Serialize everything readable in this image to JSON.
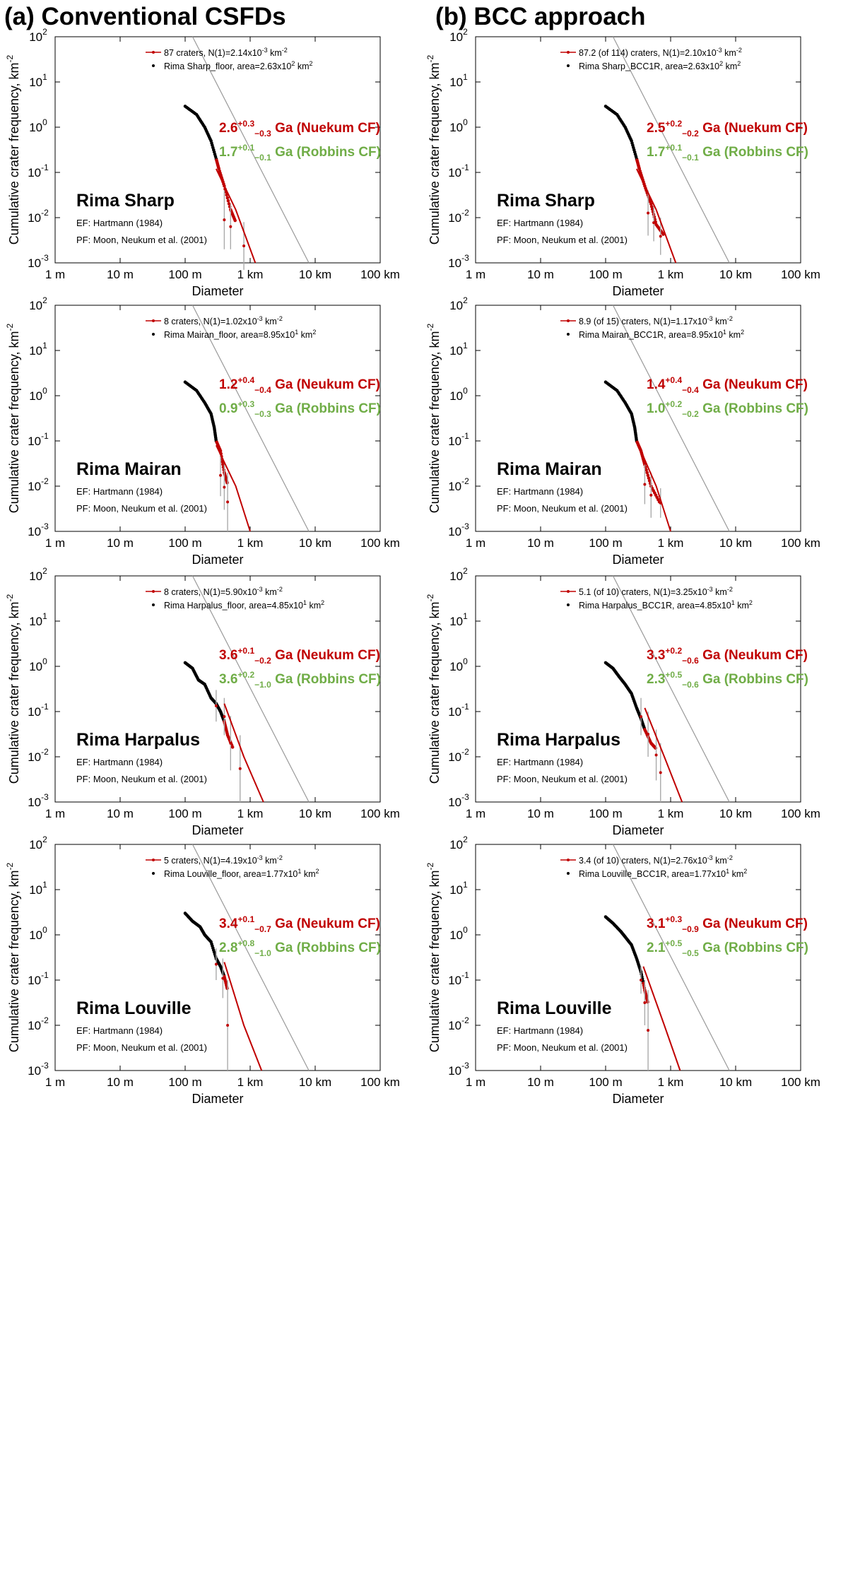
{
  "columns": {
    "a_title": "(a) Conventional CSFDs",
    "b_title": "(b) BCC approach"
  },
  "axes": {
    "ylabel_main": "Cumulative crater frequency, km",
    "ylabel_sup": "-2",
    "xlabel": "Diameter",
    "x_ticks": [
      "1 m",
      "10 m",
      "100 m",
      "1 km",
      "10 km",
      "100 km"
    ],
    "x_tick_values_km": [
      0.001,
      0.01,
      0.1,
      1,
      10,
      100
    ],
    "y_ticks": [
      {
        "base": "10",
        "exp": "2"
      },
      {
        "base": "10",
        "exp": "1"
      },
      {
        "base": "10",
        "exp": "0"
      },
      {
        "base": "10",
        "exp": "-1"
      },
      {
        "base": "10",
        "exp": "-2"
      },
      {
        "base": "10",
        "exp": "-3"
      }
    ],
    "y_tick_exponents": [
      2,
      1,
      0,
      -1,
      -2,
      -3
    ]
  },
  "colors": {
    "neukum": "#c00000",
    "robbins": "#70ad47",
    "fit_line": "#c00000",
    "isochron": "#999999",
    "errorbar": "#aaaaaa"
  },
  "chart_data": [
    {
      "type": "scatter",
      "panel": "a1",
      "name": "Rima Sharp",
      "legend_line": "87 craters, N(1)=2.14x10",
      "legend_line_exp": "-3",
      "legend_line_tail": " km",
      "legend_line_unit_exp": "-2",
      "legend_area": "Rima Sharp_floor, area=2.63x10",
      "legend_area_exp": "2",
      "legend_area_tail": " km",
      "legend_area_unit_exp": "2",
      "neukum": {
        "value": "2.6",
        "plus": "+0.3",
        "minus": "−0.3",
        "label": " Ga (Nuekum CF)"
      },
      "robbins": {
        "value": "1.7",
        "plus": "+0.1",
        "minus": "−0.1",
        "label": " Ga (Robbins CF)"
      },
      "ef": "EF: Hartmann (1984)",
      "pf": "PF: Moon, Neukum et al. (2001)",
      "curve": [
        [
          0.1,
          2.9
        ],
        [
          0.15,
          1.9
        ],
        [
          0.2,
          1.0
        ],
        [
          0.25,
          0.5
        ],
        [
          0.3,
          0.2
        ],
        [
          0.33,
          0.12
        ],
        [
          0.4,
          0.05
        ],
        [
          0.5,
          0.015
        ],
        [
          0.6,
          0.008
        ]
      ],
      "fit_start": 0.3,
      "fit": [
        [
          0.3,
          0.12
        ],
        [
          0.6,
          0.015
        ],
        [
          1.2,
          0.001
        ]
      ],
      "errs": [
        [
          0.4,
          0.04,
          0.002
        ],
        [
          0.5,
          0.02,
          0.002
        ],
        [
          0.8,
          0.008,
          0.0007
        ]
      ],
      "iso": [
        [
          0.13,
          100
        ],
        [
          8,
          0.001
        ]
      ],
      "xlim": [
        0.001,
        100
      ],
      "ylim": [
        0.001,
        100
      ]
    },
    {
      "type": "scatter",
      "panel": "b1",
      "name": "Rima Sharp",
      "legend_line": "87.2 (of 114) craters, N(1)=2.10x10",
      "legend_line_exp": "-3",
      "legend_line_tail": " km",
      "legend_line_unit_exp": "-2",
      "legend_area": "Rima Sharp_BCC1R, area=2.63x10",
      "legend_area_exp": "2",
      "legend_area_tail": " km",
      "legend_area_unit_exp": "2",
      "neukum": {
        "value": "2.5",
        "plus": "+0.2",
        "minus": "−0.2",
        "label": " Ga (Nuekum CF)"
      },
      "robbins": {
        "value": "1.7",
        "plus": "+0.1",
        "minus": "−0.1",
        "label": " Ga (Robbins CF)"
      },
      "ef": "EF: Hartmann (1984)",
      "pf": "PF: Moon, Neukum et al. (2001)",
      "curve": [
        [
          0.1,
          2.9
        ],
        [
          0.15,
          1.9
        ],
        [
          0.2,
          1.0
        ],
        [
          0.25,
          0.5
        ],
        [
          0.3,
          0.2
        ],
        [
          0.33,
          0.12
        ],
        [
          0.4,
          0.05
        ],
        [
          0.5,
          0.02
        ],
        [
          0.6,
          0.007
        ],
        [
          0.8,
          0.004
        ]
      ],
      "fit_start": 0.3,
      "fit": [
        [
          0.3,
          0.12
        ],
        [
          0.6,
          0.015
        ],
        [
          1.2,
          0.001
        ]
      ],
      "errs": [
        [
          0.45,
          0.04,
          0.004
        ],
        [
          0.55,
          0.02,
          0.003
        ],
        [
          0.7,
          0.01,
          0.0015
        ]
      ],
      "iso": [
        [
          0.13,
          100
        ],
        [
          8,
          0.001
        ]
      ],
      "xlim": [
        0.001,
        100
      ],
      "ylim": [
        0.001,
        100
      ]
    },
    {
      "type": "scatter",
      "panel": "a2",
      "name": "Rima Mairan",
      "legend_line": "8 craters, N(1)=1.02x10",
      "legend_line_exp": "-3",
      "legend_line_tail": " km",
      "legend_line_unit_exp": "-2",
      "legend_area": "Rima Mairan_floor, area=8.95x10",
      "legend_area_exp": "1",
      "legend_area_tail": " km",
      "legend_area_unit_exp": "2",
      "neukum": {
        "value": "1.2",
        "plus": "+0.4",
        "minus": "−0.4",
        "label": " Ga (Neukum CF)"
      },
      "robbins": {
        "value": "0.9",
        "plus": "+0.3",
        "minus": "−0.3",
        "label": " Ga (Robbins CF)"
      },
      "ef": "EF: Hartmann (1984)",
      "pf": "PF: Moon, Neukum et al. (2001)",
      "curve": [
        [
          0.1,
          2.0
        ],
        [
          0.15,
          1.3
        ],
        [
          0.2,
          0.7
        ],
        [
          0.25,
          0.4
        ],
        [
          0.28,
          0.2
        ],
        [
          0.3,
          0.1
        ],
        [
          0.35,
          0.06
        ],
        [
          0.4,
          0.02
        ],
        [
          0.45,
          0.011
        ]
      ],
      "fit_start": 0.3,
      "fit": [
        [
          0.3,
          0.08
        ],
        [
          0.6,
          0.01
        ],
        [
          1.0,
          0.001
        ]
      ],
      "errs": [
        [
          0.35,
          0.05,
          0.006
        ],
        [
          0.4,
          0.03,
          0.003
        ],
        [
          0.45,
          0.02,
          0.001
        ]
      ],
      "iso": [
        [
          0.13,
          100
        ],
        [
          8,
          0.001
        ]
      ],
      "xlim": [
        0.001,
        100
      ],
      "ylim": [
        0.001,
        100
      ]
    },
    {
      "type": "scatter",
      "panel": "b2",
      "name": "Rima Mairan",
      "legend_line": "8.9 (of 15) craters, N(1)=1.17x10",
      "legend_line_exp": "-3",
      "legend_line_tail": " km",
      "legend_line_unit_exp": "-2",
      "legend_area": "Rima Mairan_BCC1R, area=8.95x10",
      "legend_area_exp": "1",
      "legend_area_tail": " km",
      "legend_area_unit_exp": "2",
      "neukum": {
        "value": "1.4",
        "plus": "+0.4",
        "minus": "−0.4",
        "label": " Ga (Neukum CF)"
      },
      "robbins": {
        "value": "1.0",
        "plus": "+0.2",
        "minus": "−0.2",
        "label": " Ga (Robbins CF)"
      },
      "ef": "EF: Hartmann (1984)",
      "pf": "PF: Moon, Neukum et al. (2001)",
      "curve": [
        [
          0.1,
          2.0
        ],
        [
          0.15,
          1.3
        ],
        [
          0.2,
          0.7
        ],
        [
          0.25,
          0.4
        ],
        [
          0.28,
          0.2
        ],
        [
          0.3,
          0.1
        ],
        [
          0.35,
          0.06
        ],
        [
          0.4,
          0.03
        ],
        [
          0.5,
          0.01
        ],
        [
          0.7,
          0.004
        ]
      ],
      "fit_start": 0.3,
      "fit": [
        [
          0.3,
          0.1
        ],
        [
          0.6,
          0.01
        ],
        [
          1.0,
          0.001
        ]
      ],
      "errs": [
        [
          0.4,
          0.03,
          0.004
        ],
        [
          0.5,
          0.02,
          0.002
        ],
        [
          0.7,
          0.009,
          0.002
        ]
      ],
      "iso": [
        [
          0.13,
          100
        ],
        [
          8,
          0.001
        ]
      ],
      "xlim": [
        0.001,
        100
      ],
      "ylim": [
        0.001,
        100
      ]
    },
    {
      "type": "scatter",
      "panel": "a3",
      "name": "Rima Harpalus",
      "legend_line": "8 craters, N(1)=5.90x10",
      "legend_line_exp": "-3",
      "legend_line_tail": " km",
      "legend_line_unit_exp": "-2",
      "legend_area": "Rima Harpalus_floor, area=4.85x10",
      "legend_area_exp": "1",
      "legend_area_tail": " km",
      "legend_area_unit_exp": "2",
      "neukum": {
        "value": "3.6",
        "plus": "+0.1",
        "minus": "−0.2",
        "label": " Ga (Neukum CF)"
      },
      "robbins": {
        "value": "3.6",
        "plus": "+0.2",
        "minus": "−1.0",
        "label": " Ga (Robbins CF)"
      },
      "ef": "EF: Hartmann (1984)",
      "pf": "PF: Moon, Neukum et al. (2001)",
      "curve": [
        [
          0.1,
          1.2
        ],
        [
          0.13,
          0.9
        ],
        [
          0.16,
          0.5
        ],
        [
          0.2,
          0.4
        ],
        [
          0.25,
          0.2
        ],
        [
          0.3,
          0.15
        ],
        [
          0.35,
          0.1
        ],
        [
          0.4,
          0.06
        ],
        [
          0.45,
          0.03
        ],
        [
          0.55,
          0.015
        ]
      ],
      "fit_start": 0.4,
      "fit": [
        [
          0.4,
          0.15
        ],
        [
          0.8,
          0.01
        ],
        [
          1.6,
          0.001
        ]
      ],
      "errs": [
        [
          0.3,
          0.3,
          0.06
        ],
        [
          0.4,
          0.2,
          0.03
        ],
        [
          0.5,
          0.08,
          0.005
        ],
        [
          0.7,
          0.03,
          0.001
        ]
      ],
      "iso": [
        [
          0.13,
          100
        ],
        [
          8,
          0.001
        ]
      ],
      "xlim": [
        0.001,
        100
      ],
      "ylim": [
        0.001,
        100
      ]
    },
    {
      "type": "scatter",
      "panel": "b3",
      "name": "Rima Harpalus",
      "legend_line": "5.1 (of 10) craters, N(1)=3.25x10",
      "legend_line_exp": "-3",
      "legend_line_tail": " km",
      "legend_line_unit_exp": "-2",
      "legend_area": "Rima Harpalus_BCC1R, area=4.85x10",
      "legend_area_exp": "1",
      "legend_area_tail": " km",
      "legend_area_unit_exp": "2",
      "neukum": {
        "value": "3.3",
        "plus": "+0.2",
        "minus": "−0.6",
        "label": " Ga (Neukum CF)"
      },
      "robbins": {
        "value": "2.3",
        "plus": "+0.5",
        "minus": "−0.6",
        "label": " Ga (Robbins CF)"
      },
      "ef": "EF: Hartmann (1984)",
      "pf": "PF: Moon, Neukum et al. (2001)",
      "curve": [
        [
          0.1,
          1.2
        ],
        [
          0.13,
          0.9
        ],
        [
          0.16,
          0.6
        ],
        [
          0.2,
          0.4
        ],
        [
          0.25,
          0.25
        ],
        [
          0.3,
          0.12
        ],
        [
          0.35,
          0.07
        ],
        [
          0.4,
          0.04
        ],
        [
          0.5,
          0.02
        ],
        [
          0.6,
          0.015
        ]
      ],
      "fit_start": 0.4,
      "fit": [
        [
          0.4,
          0.12
        ],
        [
          0.8,
          0.01
        ],
        [
          1.5,
          0.001
        ]
      ],
      "errs": [
        [
          0.35,
          0.2,
          0.03
        ],
        [
          0.45,
          0.1,
          0.01
        ],
        [
          0.6,
          0.04,
          0.003
        ],
        [
          0.7,
          0.02,
          0.001
        ]
      ],
      "iso": [
        [
          0.13,
          100
        ],
        [
          8,
          0.001
        ]
      ],
      "xlim": [
        0.001,
        100
      ],
      "ylim": [
        0.001,
        100
      ]
    },
    {
      "type": "scatter",
      "panel": "a4",
      "name": "Rima Louville",
      "legend_line": "5 craters, N(1)=4.19x10",
      "legend_line_exp": "-3",
      "legend_line_tail": " km",
      "legend_line_unit_exp": "-2",
      "legend_area": "Rima Louville_floor, area=1.77x10",
      "legend_area_exp": "1",
      "legend_area_tail": " km",
      "legend_area_unit_exp": "2",
      "neukum": {
        "value": "3.4",
        "plus": "+0.1",
        "minus": "−0.7",
        "label": " Ga (Neukum CF)"
      },
      "robbins": {
        "value": "2.8",
        "plus": "+0.8",
        "minus": "−1.0",
        "label": " Ga (Robbins CF)"
      },
      "ef": "EF: Hartmann (1984)",
      "pf": "PF: Moon, Neukum et al. (2001)",
      "curve": [
        [
          0.1,
          3.0
        ],
        [
          0.13,
          2.0
        ],
        [
          0.17,
          1.5
        ],
        [
          0.2,
          1.0
        ],
        [
          0.25,
          0.7
        ],
        [
          0.3,
          0.3
        ],
        [
          0.35,
          0.2
        ],
        [
          0.4,
          0.12
        ],
        [
          0.45,
          0.06
        ]
      ],
      "fit_start": 0.4,
      "fit": [
        [
          0.4,
          0.25
        ],
        [
          0.8,
          0.01
        ],
        [
          1.5,
          0.001
        ]
      ],
      "errs": [
        [
          0.3,
          0.5,
          0.1
        ],
        [
          0.38,
          0.3,
          0.04
        ],
        [
          0.45,
          0.1,
          0.001
        ]
      ],
      "iso": [
        [
          0.13,
          100
        ],
        [
          8,
          0.001
        ]
      ],
      "xlim": [
        0.001,
        100
      ],
      "ylim": [
        0.001,
        100
      ]
    },
    {
      "type": "scatter",
      "panel": "b4",
      "name": "Rima Louville",
      "legend_line": "3.4 (of 10) craters, N(1)=2.76x10",
      "legend_line_exp": "-3",
      "legend_line_tail": " km",
      "legend_line_unit_exp": "-2",
      "legend_area": "Rima Louville_BCC1R, area=1.77x10",
      "legend_area_exp": "1",
      "legend_area_tail": " km",
      "legend_area_unit_exp": "2",
      "neukum": {
        "value": "3.1",
        "plus": "+0.3",
        "minus": "−0.9",
        "label": " Ga (Neukum CF)"
      },
      "robbins": {
        "value": "2.1",
        "plus": "+0.5",
        "minus": "−0.5",
        "label": " Ga (Robbins CF)"
      },
      "ef": "EF: Hartmann (1984)",
      "pf": "PF: Moon, Neukum et al. (2001)",
      "curve": [
        [
          0.1,
          2.5
        ],
        [
          0.13,
          1.8
        ],
        [
          0.17,
          1.2
        ],
        [
          0.2,
          0.9
        ],
        [
          0.25,
          0.6
        ],
        [
          0.3,
          0.3
        ],
        [
          0.35,
          0.15
        ],
        [
          0.4,
          0.06
        ],
        [
          0.45,
          0.03
        ]
      ],
      "fit_start": 0.38,
      "fit": [
        [
          0.38,
          0.2
        ],
        [
          0.8,
          0.01
        ],
        [
          1.4,
          0.001
        ]
      ],
      "errs": [
        [
          0.35,
          0.2,
          0.05
        ],
        [
          0.4,
          0.1,
          0.01
        ],
        [
          0.45,
          0.06,
          0.001
        ]
      ],
      "iso": [
        [
          0.13,
          100
        ],
        [
          8,
          0.001
        ]
      ],
      "xlim": [
        0.001,
        100
      ],
      "ylim": [
        0.001,
        100
      ]
    }
  ]
}
